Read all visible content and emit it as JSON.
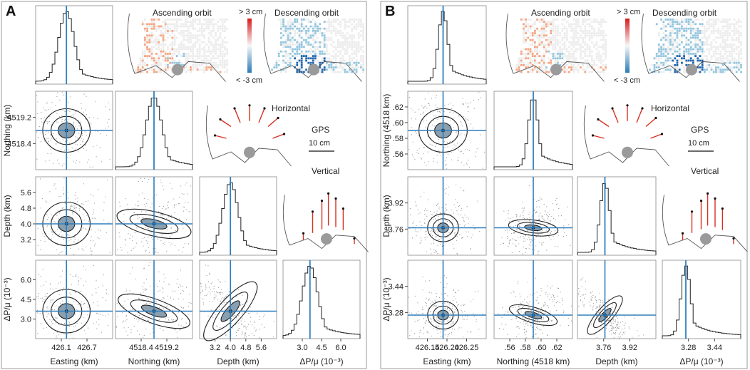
{
  "panels": [
    {
      "letter": "A",
      "map_titles": [
        "Ascending orbit",
        "Descending orbit"
      ],
      "colorbar": {
        "top": "> 3 cm",
        "bottom": "< -3 cm",
        "colors": [
          "#d7191c",
          "#f7f7f7",
          "#2c7bb6"
        ]
      },
      "gps": {
        "horizontal_title": "Horizontal",
        "vertical_title": "Vertical",
        "legend_label": "GPS",
        "scale_label": "10 cm"
      },
      "params": [
        {
          "label": "Easting (km)",
          "ylabel": "",
          "ticks": [
            "426.1",
            "426.7"
          ],
          "truth": 0.4
        },
        {
          "label": "Northing (km)",
          "ylabel": "Northing (km)",
          "ticks": [
            "4518.4",
            "4519.2"
          ],
          "truth": 0.5
        },
        {
          "label": "Depth (km)",
          "ylabel": "Depth (km)",
          "ticks": [
            "3.2",
            "4.0",
            "4.8",
            "5.6"
          ],
          "truth": 0.4
        },
        {
          "label": "ΔP/μ (10⁻³)",
          "ylabel": "ΔP/μ (10⁻³)",
          "ticks": [
            "3.0",
            "4.5",
            "6.0"
          ],
          "truth": 0.35
        }
      ],
      "row_ticks": [
        [
          "4519.2",
          "4518.4"
        ],
        [
          "5.6",
          "4.8",
          "4.0",
          "3.2"
        ],
        [
          "6.0",
          "4.5",
          "3.0"
        ]
      ],
      "col_ticks": [
        [
          "426.1",
          "426.7"
        ],
        [
          "4518.4",
          "4519.2"
        ],
        [
          "3.2",
          "4.0",
          "4.8",
          "5.6"
        ],
        [
          "3.0",
          "4.5",
          "6.0"
        ]
      ]
    },
    {
      "letter": "B",
      "map_titles": [
        "Ascending orbit",
        "Descending orbit"
      ],
      "colorbar": {
        "top": "> 3 cm",
        "bottom": "< -3 cm",
        "colors": [
          "#d7191c",
          "#f7f7f7",
          "#2c7bb6"
        ]
      },
      "gps": {
        "horizontal_title": "Horizontal",
        "vertical_title": "Vertical",
        "legend_label": "GPS",
        "scale_label": "10 cm"
      },
      "params": [
        {
          "label": "Easting (km)",
          "ylabel": "",
          "truth": 0.45
        },
        {
          "label": "Northing (4518 km)",
          "ylabel": "Northing (4518 km)",
          "truth": 0.5
        },
        {
          "label": "Depth (km)",
          "ylabel": "Depth (km)",
          "truth": 0.35
        },
        {
          "label": "ΔP/μ (10⁻³)",
          "ylabel": "ΔP/μ (10⁻³)",
          "truth": 0.3
        }
      ],
      "row_ticks": [
        [
          ".62",
          ".60",
          ".58",
          ".56"
        ],
        [
          "3.92",
          "3.76"
        ],
        [
          "3.44",
          "3.28"
        ]
      ],
      "col_ticks": [
        [
          "426.15",
          "426.20",
          "426.25"
        ],
        [
          ".56",
          ".58",
          ".60",
          ".62"
        ],
        [
          "3.76",
          "3.92"
        ],
        [
          "3.28",
          "3.44"
        ]
      ]
    }
  ]
}
